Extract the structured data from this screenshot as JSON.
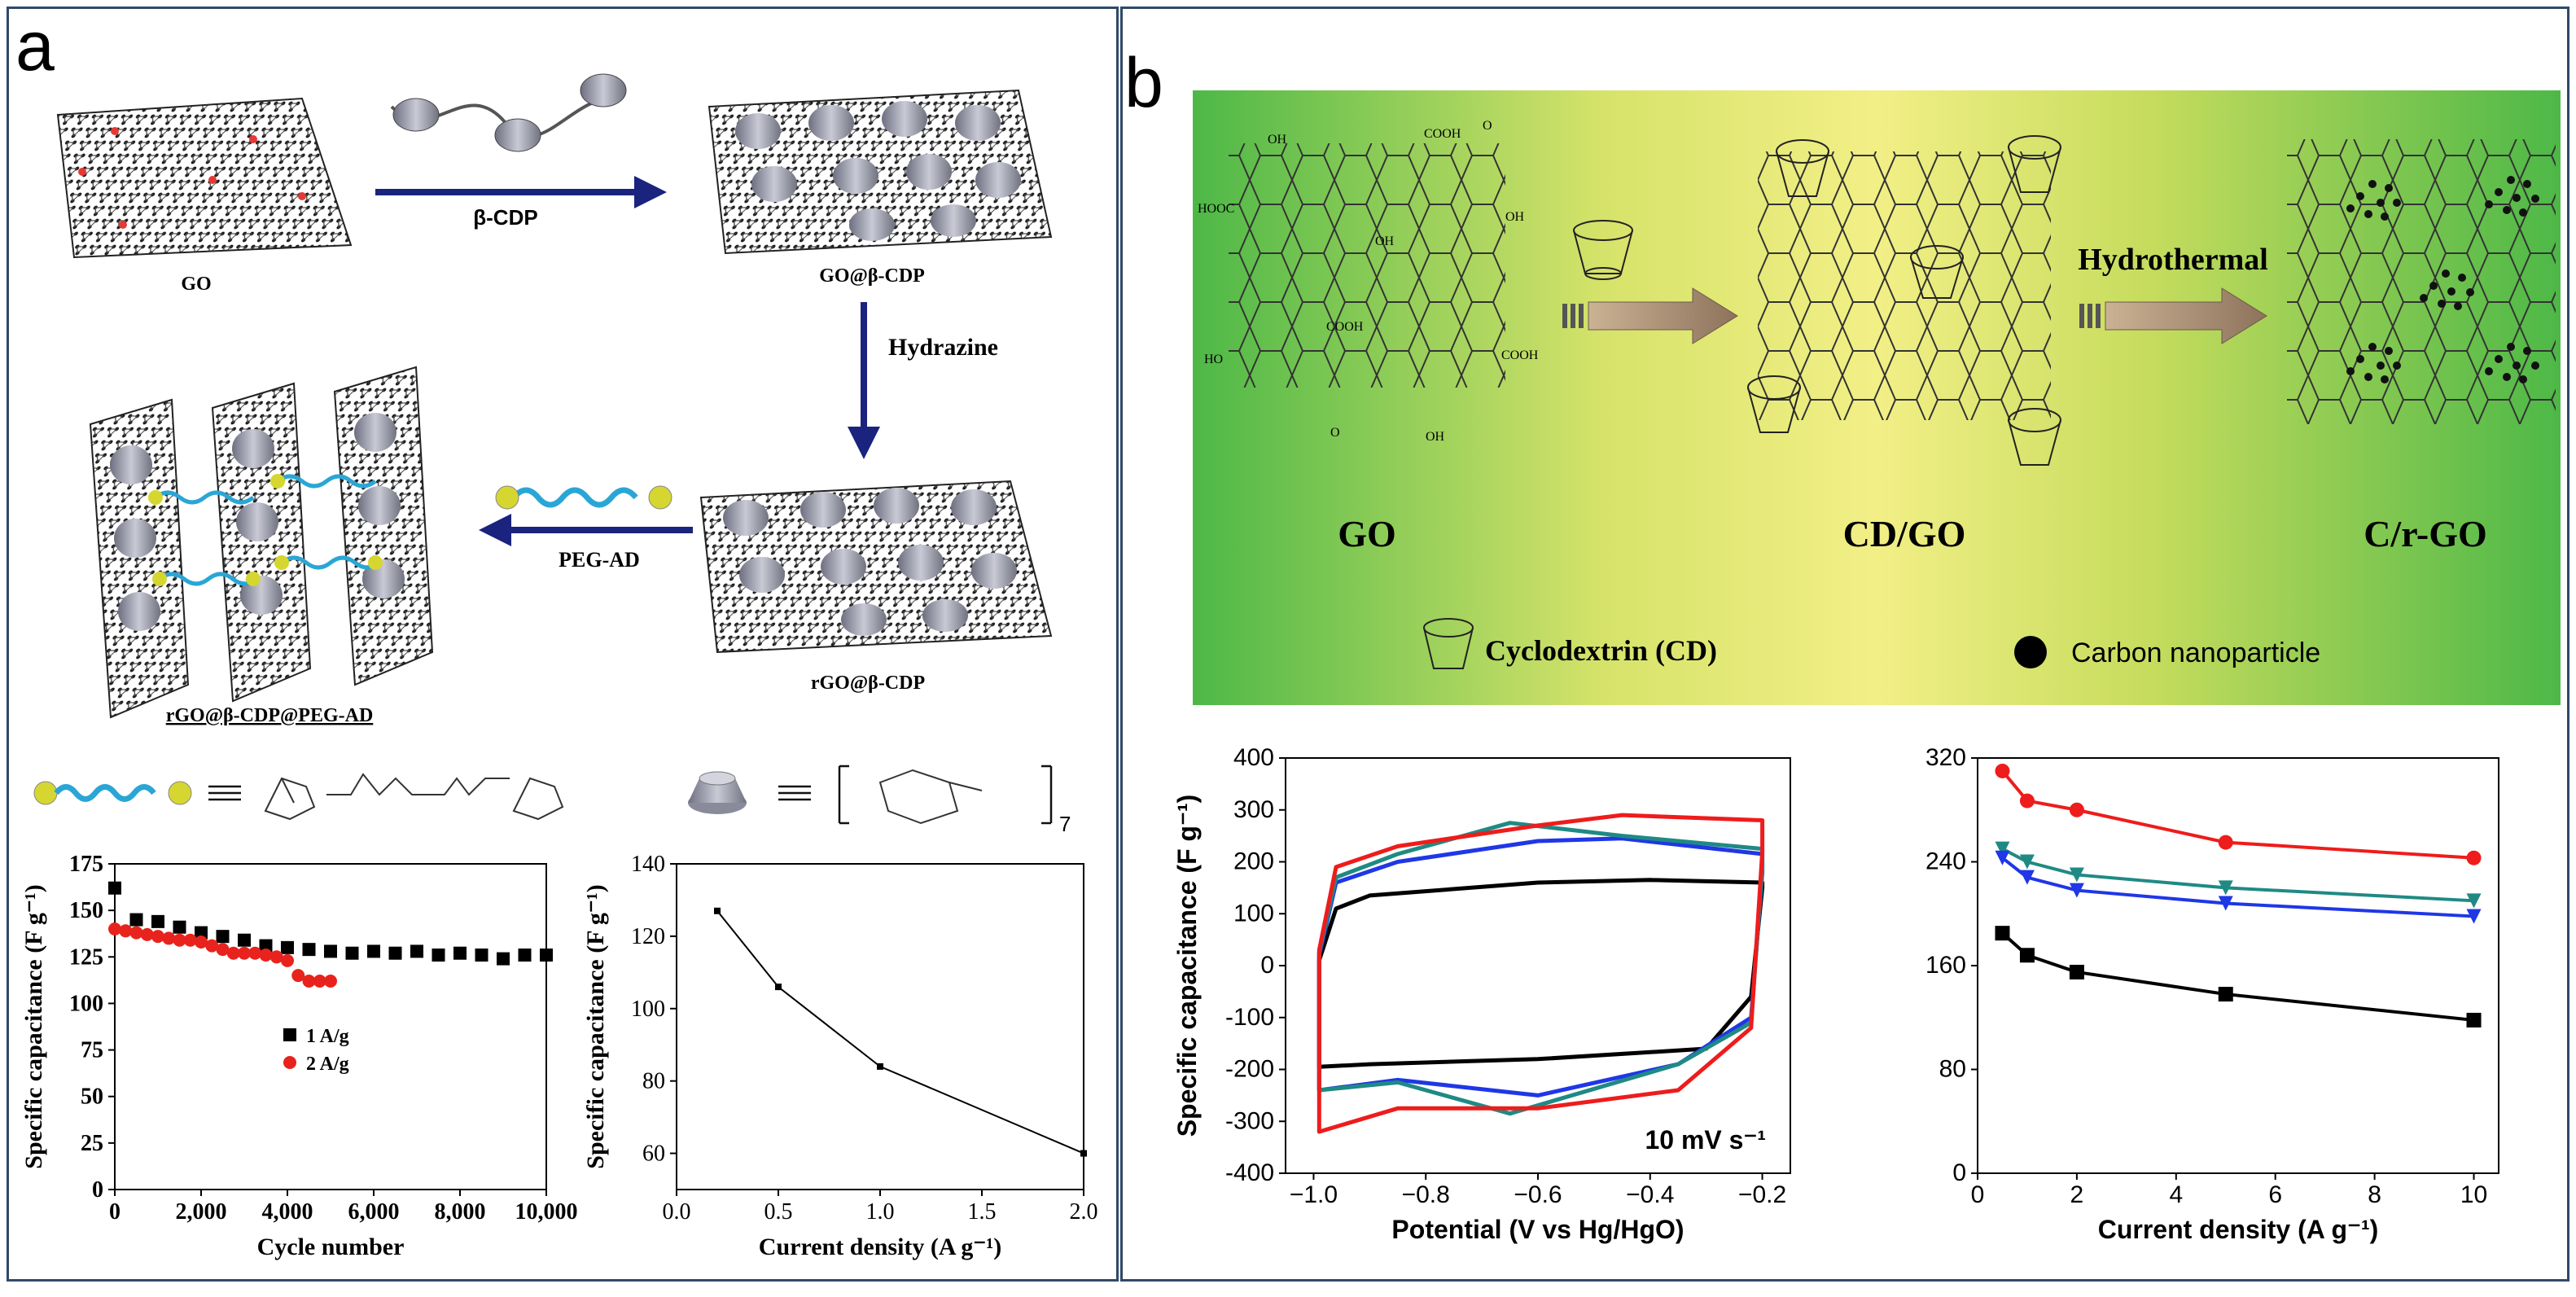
{
  "figure": {
    "panel_a_label": "a",
    "panel_b_label": "b"
  },
  "scheme_a": {
    "go_label": "GO",
    "arrow1_label": "β-CDP",
    "go_cdp_label": "GO@β-CDP",
    "arrow2_label": "Hydrazine",
    "rgo_cdp_label": "rGO@β-CDP",
    "arrow3_label": "PEG-AD",
    "final_label": "rGO@β-CDP@PEG-AD",
    "repeat_subscript": "7"
  },
  "scheme_b": {
    "go_label": "GO",
    "cdgo_label": "CD/GO",
    "crgo_label": "C/r-GO",
    "hydrothermal_label": "Hydrothermal",
    "legend_cd": "Cyclodextrin (CD)",
    "legend_np": "Carbon nanoparticle",
    "groups": [
      "OH",
      "COOH",
      "O",
      "HOOC",
      "OH",
      "OH",
      "COOH",
      "HO",
      "COOH",
      "O",
      "OH"
    ]
  },
  "chart_data": [
    {
      "id": "a-cycling",
      "type": "scatter",
      "xlabel": "Cycle number",
      "ylabel": "Specific capacitance (F g⁻¹)",
      "xlim": [
        0,
        10000
      ],
      "ylim": [
        0,
        175
      ],
      "x_ticks": [
        "0",
        "2,000",
        "4,000",
        "6,000",
        "8,000",
        "10,000"
      ],
      "y_ticks": [
        "0",
        "25",
        "50",
        "75",
        "100",
        "125",
        "150",
        "175"
      ],
      "series": [
        {
          "name": "1 A/g",
          "color": "#000000",
          "marker": "square",
          "x": [
            0,
            500,
            1000,
            1500,
            2000,
            2500,
            3000,
            3500,
            4000,
            4500,
            5000,
            5500,
            6000,
            6500,
            7000,
            7500,
            8000,
            8500,
            9000,
            9500,
            10000
          ],
          "y": [
            162,
            145,
            144,
            141,
            138,
            136,
            134,
            131,
            130,
            129,
            128,
            127,
            128,
            127,
            128,
            126,
            127,
            126,
            124,
            126,
            126
          ]
        },
        {
          "name": "2 A/g",
          "color": "#e8231d",
          "marker": "circle",
          "x": [
            0,
            250,
            500,
            750,
            1000,
            1250,
            1500,
            1750,
            2000,
            2250,
            2500,
            2750,
            3000,
            3250,
            3500,
            3750,
            4000,
            4250,
            4500,
            4750,
            5000
          ],
          "y": [
            140,
            139,
            138,
            137,
            136,
            135,
            134,
            134,
            133,
            131,
            129,
            127,
            127,
            127,
            126,
            125,
            123,
            115,
            112,
            112,
            112
          ]
        }
      ]
    },
    {
      "id": "a-rate",
      "type": "line",
      "xlabel": "Current density (A g⁻¹)",
      "ylabel": "Specific capacitance (F g⁻¹)",
      "xlim": [
        0,
        2.0
      ],
      "ylim": [
        50,
        140
      ],
      "x_ticks": [
        "0.0",
        "0.5",
        "1.0",
        "1.5",
        "2.0"
      ],
      "y_ticks": [
        "60",
        "80",
        "100",
        "120",
        "140"
      ],
      "x": [
        0.2,
        0.5,
        1.0,
        2.0
      ],
      "values": [
        127,
        106,
        84,
        60
      ]
    },
    {
      "id": "b-cv",
      "type": "line",
      "title_annotation": "10 mV s⁻¹",
      "xlabel": "Potential (V vs Hg/HgO)",
      "ylabel": "Specific capacitance (F g⁻¹)",
      "xlim": [
        -1.05,
        -0.15
      ],
      "ylim": [
        -400,
        400
      ],
      "x_ticks": [
        "−1.0",
        "−0.8",
        "−0.6",
        "−0.4",
        "−0.2"
      ],
      "y_ticks": [
        "-400",
        "-300",
        "-200",
        "-100",
        "0",
        "100",
        "200",
        "300",
        "400"
      ],
      "series": [
        {
          "name": "black",
          "color": "#000000",
          "upper": [
            [
              -0.99,
              10
            ],
            [
              -0.96,
              110
            ],
            [
              -0.9,
              135
            ],
            [
              -0.6,
              160
            ],
            [
              -0.4,
              165
            ],
            [
              -0.2,
              160
            ]
          ],
          "lower": [
            [
              -0.2,
              150
            ],
            [
              -0.22,
              -60
            ],
            [
              -0.3,
              -160
            ],
            [
              -0.6,
              -180
            ],
            [
              -0.9,
              -190
            ],
            [
              -0.99,
              -195
            ]
          ]
        },
        {
          "name": "blue",
          "color": "#1f37e6",
          "upper": [
            [
              -0.99,
              20
            ],
            [
              -0.96,
              160
            ],
            [
              -0.85,
              200
            ],
            [
              -0.6,
              240
            ],
            [
              -0.45,
              245
            ],
            [
              -0.2,
              215
            ]
          ],
          "lower": [
            [
              -0.2,
              180
            ],
            [
              -0.22,
              -100
            ],
            [
              -0.35,
              -190
            ],
            [
              -0.6,
              -250
            ],
            [
              -0.85,
              -220
            ],
            [
              -0.99,
              -240
            ]
          ]
        },
        {
          "name": "teal",
          "color": "#1f8a84",
          "upper": [
            [
              -0.99,
              25
            ],
            [
              -0.96,
              170
            ],
            [
              -0.85,
              215
            ],
            [
              -0.65,
              275
            ],
            [
              -0.45,
              250
            ],
            [
              -0.2,
              225
            ]
          ],
          "lower": [
            [
              -0.2,
              190
            ],
            [
              -0.22,
              -110
            ],
            [
              -0.35,
              -190
            ],
            [
              -0.65,
              -285
            ],
            [
              -0.85,
              -225
            ],
            [
              -0.99,
              -240
            ]
          ]
        },
        {
          "name": "red",
          "color": "#ee1c1c",
          "upper": [
            [
              -0.99,
              30
            ],
            [
              -0.96,
              190
            ],
            [
              -0.85,
              230
            ],
            [
              -0.6,
              270
            ],
            [
              -0.45,
              290
            ],
            [
              -0.2,
              280
            ]
          ],
          "lower": [
            [
              -0.2,
              220
            ],
            [
              -0.22,
              -120
            ],
            [
              -0.35,
              -240
            ],
            [
              -0.6,
              -275
            ],
            [
              -0.85,
              -275
            ],
            [
              -0.99,
              -320
            ]
          ]
        }
      ]
    },
    {
      "id": "b-rate",
      "type": "line",
      "xlabel": "Current density (A g⁻¹)",
      "ylabel": "",
      "xlim": [
        0,
        10.5
      ],
      "ylim": [
        0,
        320
      ],
      "x_ticks": [
        "0",
        "2",
        "4",
        "6",
        "8",
        "10"
      ],
      "y_ticks": [
        "0",
        "80",
        "160",
        "240",
        "320"
      ],
      "x": [
        0.5,
        1,
        2,
        5,
        10
      ],
      "series": [
        {
          "name": "red",
          "color": "#ee1c1c",
          "marker": "circle",
          "values": [
            310,
            287,
            280,
            255,
            243
          ]
        },
        {
          "name": "teal",
          "color": "#1f8a84",
          "marker": "triangle-down",
          "values": [
            250,
            240,
            230,
            220,
            210
          ]
        },
        {
          "name": "blue",
          "color": "#1f37e6",
          "marker": "triangle-down",
          "values": [
            243,
            228,
            218,
            208,
            198
          ]
        },
        {
          "name": "black",
          "color": "#000000",
          "marker": "square",
          "values": [
            185,
            168,
            155,
            138,
            118
          ]
        }
      ]
    }
  ]
}
